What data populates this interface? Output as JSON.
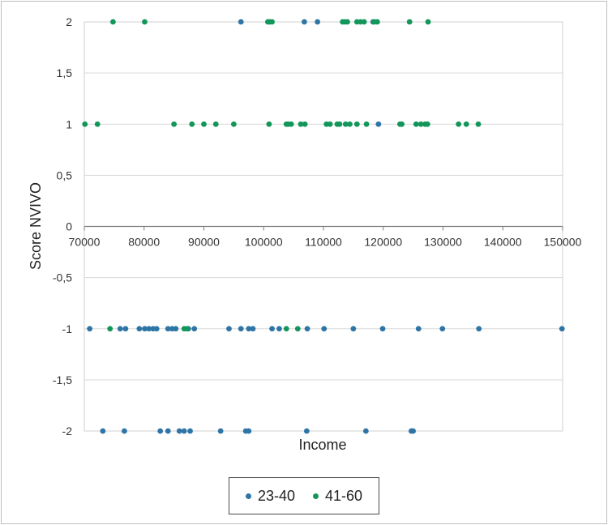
{
  "chart_data": {
    "type": "scatter",
    "title": "",
    "xlabel": "Income",
    "ylabel": "Score NVIVO",
    "xlim": [
      70000,
      150000
    ],
    "ylim": [
      -2,
      2
    ],
    "x_ticks": [
      "70000",
      "80000",
      "90000",
      "100000",
      "110000",
      "120000",
      "130000",
      "140000",
      "150000"
    ],
    "y_ticks": [
      "-2",
      "-1,5",
      "-1",
      "-0,5",
      "0",
      "0,5",
      "1",
      "1,5",
      "2"
    ],
    "x_tick_values": [
      70000,
      80000,
      90000,
      100000,
      110000,
      120000,
      130000,
      140000,
      150000
    ],
    "y_tick_values": [
      -2,
      -1.5,
      -1,
      -0.5,
      0,
      0.5,
      1,
      1.5,
      2
    ],
    "grid": "horizontal",
    "legend": "bottom",
    "series": [
      {
        "name": "23-40",
        "color": "#2e75a6",
        "points": [
          [
            96200,
            2
          ],
          [
            106800,
            2
          ],
          [
            109000,
            2
          ],
          [
            118300,
            2
          ],
          [
            119200,
            1
          ],
          [
            70900,
            -1
          ],
          [
            76000,
            -1
          ],
          [
            76900,
            -1
          ],
          [
            79200,
            -1
          ],
          [
            80100,
            -1
          ],
          [
            80800,
            -1
          ],
          [
            81500,
            -1
          ],
          [
            82100,
            -1
          ],
          [
            84000,
            -1
          ],
          [
            84700,
            -1
          ],
          [
            85300,
            -1
          ],
          [
            87400,
            -1
          ],
          [
            88400,
            -1
          ],
          [
            94200,
            -1
          ],
          [
            96200,
            -1
          ],
          [
            97500,
            -1
          ],
          [
            98200,
            -1
          ],
          [
            101400,
            -1
          ],
          [
            102600,
            -1
          ],
          [
            107300,
            -1
          ],
          [
            110100,
            -1
          ],
          [
            115000,
            -1
          ],
          [
            119900,
            -1
          ],
          [
            125900,
            -1
          ],
          [
            129900,
            -1
          ],
          [
            136000,
            -1
          ],
          [
            149900,
            -1
          ],
          [
            73100,
            -2
          ],
          [
            76700,
            -2
          ],
          [
            82700,
            -2
          ],
          [
            84000,
            -2
          ],
          [
            85900,
            -2
          ],
          [
            86700,
            -2
          ],
          [
            87700,
            -2
          ],
          [
            92800,
            -2
          ],
          [
            97000,
            -2
          ],
          [
            97500,
            -2
          ],
          [
            107200,
            -2
          ],
          [
            117100,
            -2
          ],
          [
            124700,
            -2
          ],
          [
            125000,
            -2
          ]
        ]
      },
      {
        "name": "41-60",
        "color": "#12965a",
        "points": [
          [
            74800,
            2
          ],
          [
            80100,
            2
          ],
          [
            100700,
            2
          ],
          [
            101000,
            2
          ],
          [
            101400,
            2
          ],
          [
            113200,
            2
          ],
          [
            113600,
            2
          ],
          [
            114000,
            2
          ],
          [
            115600,
            2
          ],
          [
            116200,
            2
          ],
          [
            116800,
            2
          ],
          [
            118500,
            2
          ],
          [
            119000,
            2
          ],
          [
            124400,
            2
          ],
          [
            127500,
            2
          ],
          [
            70100,
            1
          ],
          [
            72200,
            1
          ],
          [
            85000,
            1
          ],
          [
            88000,
            1
          ],
          [
            90000,
            1
          ],
          [
            92000,
            1
          ],
          [
            95000,
            1
          ],
          [
            100900,
            1
          ],
          [
            103800,
            1
          ],
          [
            104100,
            1
          ],
          [
            104600,
            1
          ],
          [
            106200,
            1
          ],
          [
            106900,
            1
          ],
          [
            110500,
            1
          ],
          [
            111100,
            1
          ],
          [
            112300,
            1
          ],
          [
            112700,
            1
          ],
          [
            113700,
            1
          ],
          [
            114400,
            1
          ],
          [
            115600,
            1
          ],
          [
            117200,
            1
          ],
          [
            122800,
            1
          ],
          [
            123100,
            1
          ],
          [
            125500,
            1
          ],
          [
            126300,
            1
          ],
          [
            127000,
            1
          ],
          [
            127400,
            1
          ],
          [
            132600,
            1
          ],
          [
            133900,
            1
          ],
          [
            135900,
            1
          ],
          [
            74300,
            -1
          ],
          [
            86700,
            -1
          ],
          [
            87200,
            -1
          ],
          [
            103800,
            -1
          ],
          [
            105700,
            -1
          ]
        ]
      }
    ]
  }
}
